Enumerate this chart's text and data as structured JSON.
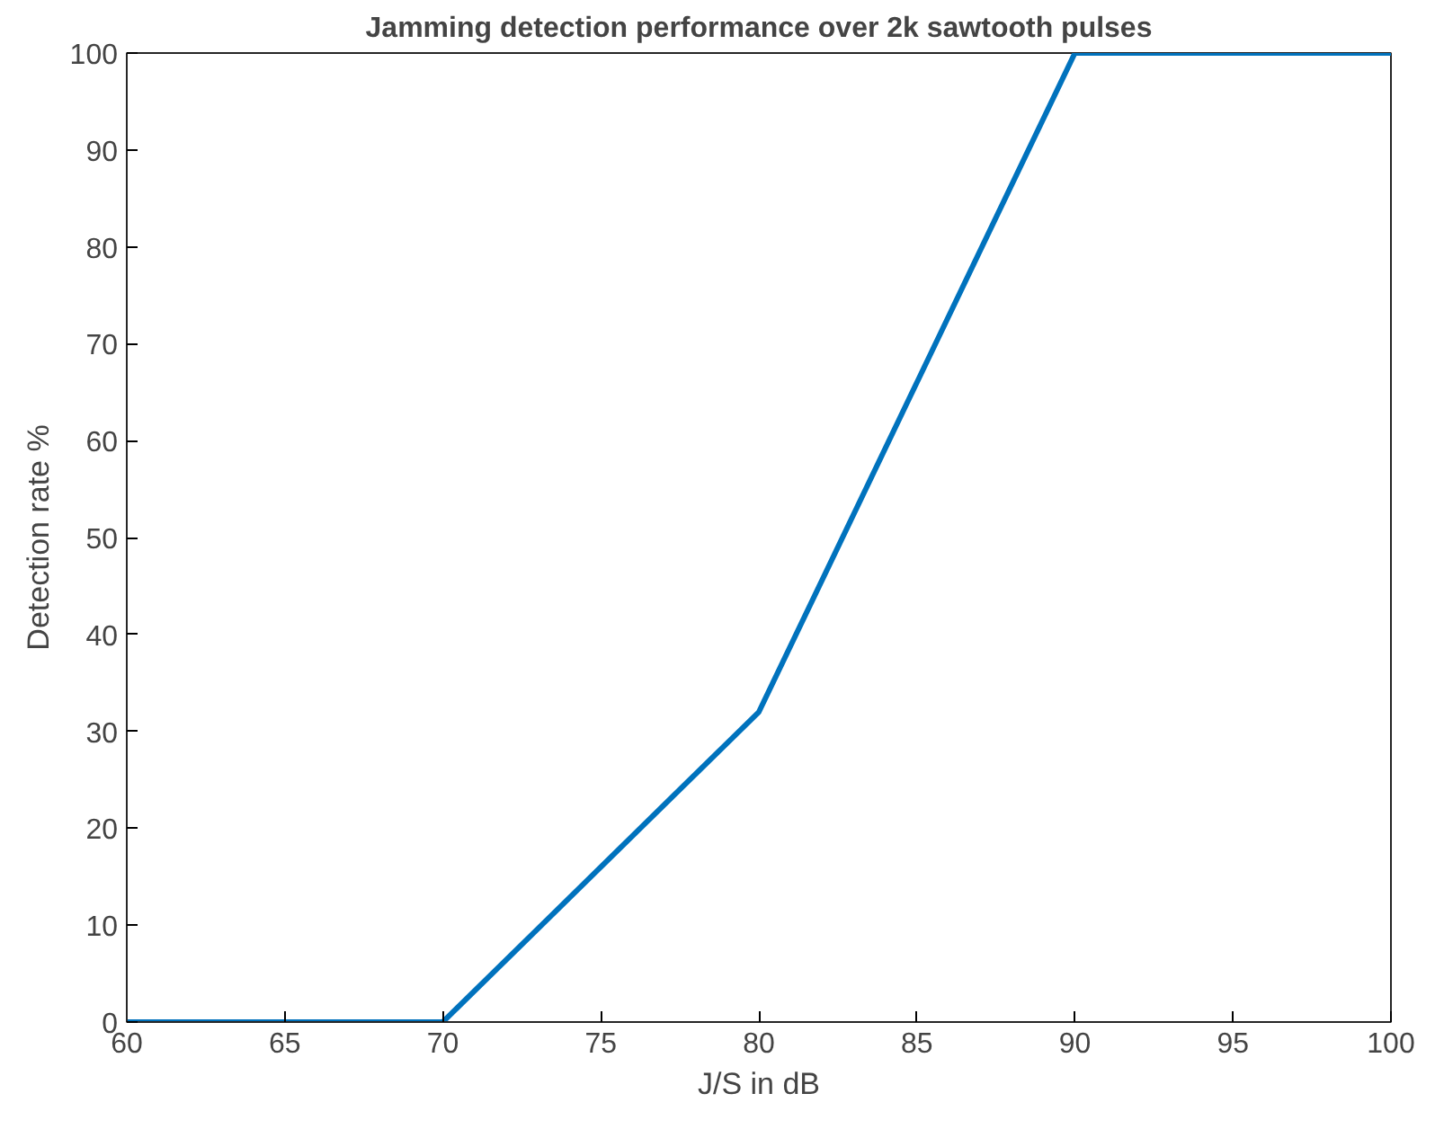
{
  "chart_data": {
    "type": "line",
    "title": "Jamming detection performance over 2k sawtooth pulses",
    "xlabel": "J/S in dB",
    "ylabel": "Detection rate %",
    "x": [
      60,
      70,
      80,
      90,
      100
    ],
    "series": [
      {
        "color": "#0072bd",
        "values": [
          0,
          0,
          32,
          100,
          100
        ]
      }
    ],
    "xlim": [
      60,
      100
    ],
    "xticks": [
      60,
      65,
      70,
      75,
      80,
      85,
      90,
      95,
      100
    ],
    "ylim": [
      0,
      100
    ],
    "yticks": [
      0,
      10,
      20,
      30,
      40,
      50,
      60,
      70,
      80,
      90,
      100
    ],
    "grid": false,
    "marker": "none",
    "line_style": "solid"
  }
}
